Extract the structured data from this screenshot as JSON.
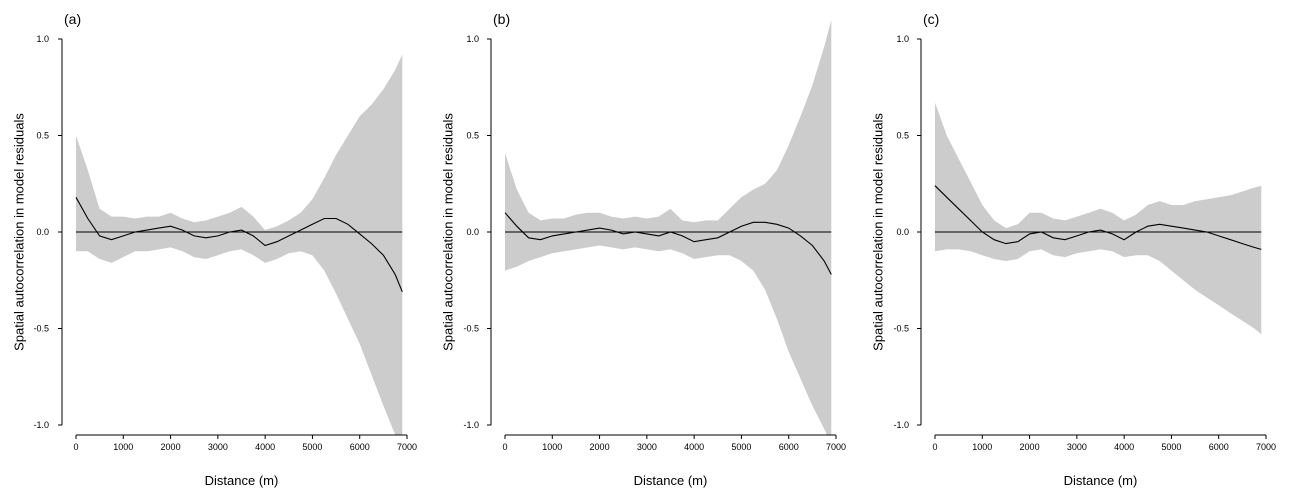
{
  "chart_data": [
    {
      "type": "line",
      "panel_label": "(a)",
      "xlabel": "Distance (m)",
      "ylabel": "Spatial autocorrelation in model residuals",
      "xlim": [
        0,
        7000
      ],
      "ylim": [
        -1.0,
        1.0
      ],
      "xticks": [
        "0",
        "1000",
        "2000",
        "3000",
        "4000",
        "5000",
        "6000",
        "7000"
      ],
      "yticks": [
        "-1.0",
        "-0.5",
        "0.0",
        "0.5",
        "1.0"
      ],
      "reference_line": 0,
      "colors": {
        "band": "#cccccc",
        "line": "#000000"
      },
      "series": [
        {
          "x": [
            0,
            250,
            500,
            750,
            1000,
            1250,
            1500,
            1750,
            2000,
            2250,
            2500,
            2750,
            3000,
            3250,
            3500,
            3750,
            4000,
            4250,
            4500,
            4750,
            5000,
            5250,
            5500,
            5750,
            6000,
            6250,
            6500,
            6750,
            6900
          ],
          "values": [
            0.18,
            0.07,
            -0.02,
            -0.04,
            -0.02,
            0.0,
            0.01,
            0.02,
            0.03,
            0.01,
            -0.02,
            -0.03,
            -0.02,
            0.0,
            0.01,
            -0.02,
            -0.07,
            -0.05,
            -0.02,
            0.01,
            0.04,
            0.07,
            0.07,
            0.04,
            -0.01,
            -0.06,
            -0.12,
            -0.22,
            -0.31
          ],
          "lower": [
            -0.1,
            -0.1,
            -0.14,
            -0.16,
            -0.13,
            -0.1,
            -0.1,
            -0.09,
            -0.08,
            -0.1,
            -0.13,
            -0.14,
            -0.12,
            -0.1,
            -0.09,
            -0.12,
            -0.16,
            -0.14,
            -0.11,
            -0.1,
            -0.12,
            -0.2,
            -0.32,
            -0.45,
            -0.58,
            -0.74,
            -0.9,
            -1.05,
            -1.1
          ],
          "upper": [
            0.5,
            0.32,
            0.12,
            0.08,
            0.08,
            0.07,
            0.08,
            0.08,
            0.1,
            0.07,
            0.05,
            0.06,
            0.08,
            0.1,
            0.13,
            0.08,
            0.01,
            0.03,
            0.06,
            0.1,
            0.17,
            0.28,
            0.4,
            0.5,
            0.6,
            0.66,
            0.74,
            0.84,
            0.92
          ]
        }
      ]
    },
    {
      "type": "line",
      "panel_label": "(b)",
      "xlabel": "Distance (m)",
      "ylabel": "Spatial autocorrelation in model residuals",
      "xlim": [
        0,
        7000
      ],
      "ylim": [
        -1.0,
        1.0
      ],
      "xticks": [
        "0",
        "1000",
        "2000",
        "3000",
        "4000",
        "5000",
        "6000",
        "7000"
      ],
      "yticks": [
        "-1.0",
        "-0.5",
        "0.0",
        "0.5",
        "1.0"
      ],
      "reference_line": 0,
      "colors": {
        "band": "#cccccc",
        "line": "#000000"
      },
      "series": [
        {
          "x": [
            0,
            250,
            500,
            750,
            1000,
            1250,
            1500,
            1750,
            2000,
            2250,
            2500,
            2750,
            3000,
            3250,
            3500,
            3750,
            4000,
            4250,
            4500,
            4750,
            5000,
            5250,
            5500,
            5750,
            6000,
            6250,
            6500,
            6750,
            6900
          ],
          "values": [
            0.1,
            0.03,
            -0.03,
            -0.04,
            -0.02,
            -0.01,
            0.0,
            0.01,
            0.02,
            0.01,
            -0.01,
            0.0,
            -0.01,
            -0.02,
            0.0,
            -0.02,
            -0.05,
            -0.04,
            -0.03,
            0.0,
            0.03,
            0.05,
            0.05,
            0.04,
            0.02,
            -0.02,
            -0.07,
            -0.15,
            -0.22
          ],
          "lower": [
            -0.2,
            -0.18,
            -0.15,
            -0.13,
            -0.11,
            -0.1,
            -0.09,
            -0.08,
            -0.07,
            -0.08,
            -0.09,
            -0.08,
            -0.09,
            -0.1,
            -0.09,
            -0.11,
            -0.14,
            -0.13,
            -0.12,
            -0.12,
            -0.15,
            -0.2,
            -0.3,
            -0.45,
            -0.62,
            -0.76,
            -0.9,
            -1.02,
            -1.1
          ],
          "upper": [
            0.41,
            0.22,
            0.1,
            0.06,
            0.07,
            0.07,
            0.09,
            0.1,
            0.1,
            0.08,
            0.07,
            0.08,
            0.07,
            0.08,
            0.12,
            0.06,
            0.05,
            0.06,
            0.06,
            0.12,
            0.18,
            0.22,
            0.25,
            0.32,
            0.45,
            0.6,
            0.76,
            0.96,
            1.1
          ]
        }
      ]
    },
    {
      "type": "line",
      "panel_label": "(c)",
      "xlabel": "Distance (m)",
      "ylabel": "Spatial autocorrelation in model residuals",
      "xlim": [
        0,
        7000
      ],
      "ylim": [
        -1.0,
        1.0
      ],
      "xticks": [
        "0",
        "1000",
        "2000",
        "3000",
        "4000",
        "5000",
        "6000",
        "7000"
      ],
      "yticks": [
        "-1.0",
        "-0.5",
        "0.0",
        "0.5",
        "1.0"
      ],
      "reference_line": 0,
      "colors": {
        "band": "#cccccc",
        "line": "#000000"
      },
      "series": [
        {
          "x": [
            0,
            250,
            500,
            750,
            1000,
            1250,
            1500,
            1750,
            2000,
            2250,
            2500,
            2750,
            3000,
            3250,
            3500,
            3750,
            4000,
            4250,
            4500,
            4750,
            5000,
            5250,
            5500,
            5750,
            6000,
            6250,
            6500,
            6750,
            6900
          ],
          "values": [
            0.24,
            0.18,
            0.12,
            0.06,
            0.0,
            -0.04,
            -0.06,
            -0.05,
            -0.01,
            0.0,
            -0.03,
            -0.04,
            -0.02,
            0.0,
            0.01,
            -0.01,
            -0.04,
            0.0,
            0.03,
            0.04,
            0.03,
            0.02,
            0.01,
            0.0,
            -0.02,
            -0.04,
            -0.06,
            -0.08,
            -0.09
          ],
          "lower": [
            -0.1,
            -0.09,
            -0.09,
            -0.1,
            -0.12,
            -0.14,
            -0.15,
            -0.14,
            -0.1,
            -0.09,
            -0.12,
            -0.13,
            -0.11,
            -0.1,
            -0.09,
            -0.1,
            -0.13,
            -0.12,
            -0.12,
            -0.15,
            -0.2,
            -0.25,
            -0.3,
            -0.34,
            -0.38,
            -0.42,
            -0.46,
            -0.5,
            -0.53
          ],
          "upper": [
            0.67,
            0.5,
            0.38,
            0.26,
            0.14,
            0.06,
            0.02,
            0.04,
            0.1,
            0.1,
            0.07,
            0.06,
            0.08,
            0.1,
            0.12,
            0.1,
            0.06,
            0.09,
            0.14,
            0.16,
            0.14,
            0.14,
            0.16,
            0.17,
            0.18,
            0.19,
            0.21,
            0.23,
            0.24
          ]
        }
      ]
    }
  ]
}
